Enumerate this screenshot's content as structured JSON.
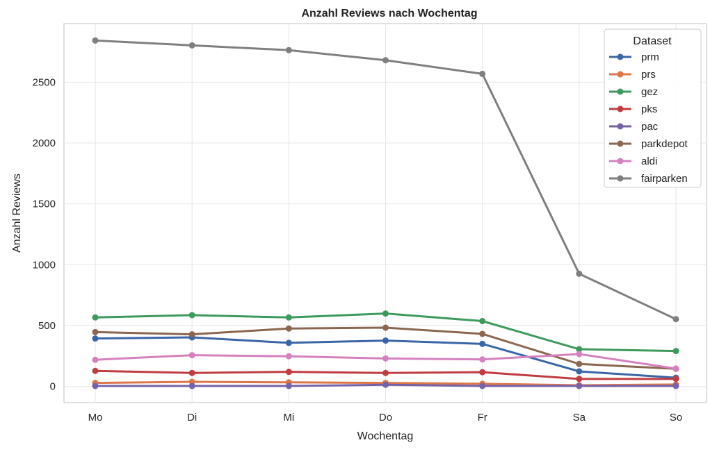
{
  "chart_data": {
    "type": "line",
    "title": "Anzahl Reviews nach Wochentag",
    "xlabel": "Wochentag",
    "ylabel": "Anzahl Reviews",
    "categories": [
      "Mo",
      "Di",
      "Mi",
      "Do",
      "Fr",
      "Sa",
      "So"
    ],
    "yticks": [
      0,
      500,
      1000,
      1500,
      2000,
      2500
    ],
    "ylim": [
      -130,
      2990
    ],
    "grid": true,
    "legend": {
      "title": "Dataset",
      "placement": "top-right"
    },
    "series": [
      {
        "name": "prm",
        "color": "#3a66a8",
        "values": [
          394,
          403,
          358,
          377,
          350,
          124,
          72
        ]
      },
      {
        "name": "prs",
        "color": "#dd7648",
        "values": [
          29,
          38,
          34,
          29,
          22,
          10,
          16
        ]
      },
      {
        "name": "gez",
        "color": "#3d9a5c",
        "values": [
          567,
          586,
          567,
          599,
          537,
          306,
          291
        ]
      },
      {
        "name": "pks",
        "color": "#c13c40",
        "values": [
          128,
          111,
          120,
          111,
          117,
          62,
          62
        ]
      },
      {
        "name": "pac",
        "color": "#7562a8",
        "values": [
          4,
          4,
          4,
          14,
          4,
          4,
          4
        ]
      },
      {
        "name": "parkdepot",
        "color": "#8b6650",
        "values": [
          447,
          428,
          476,
          483,
          432,
          185,
          145
        ]
      },
      {
        "name": "aldi",
        "color": "#d681bf",
        "values": [
          219,
          257,
          248,
          230,
          222,
          266,
          147
        ]
      },
      {
        "name": "fairparken",
        "color": "#7f7f7f",
        "values": [
          2842,
          2802,
          2763,
          2680,
          2568,
          926,
          553
        ]
      }
    ]
  }
}
